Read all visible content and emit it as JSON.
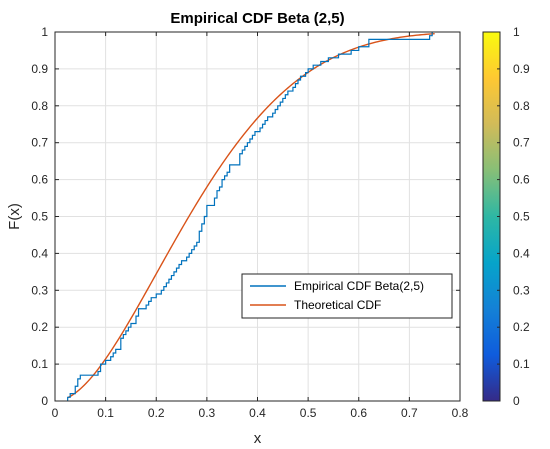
{
  "chart_data": {
    "type": "line",
    "title": "Empirical CDF Beta (2,5)",
    "xlabel": "x",
    "ylabel": "F(x)",
    "xlim": [
      0,
      0.8
    ],
    "ylim": [
      0,
      1
    ],
    "xticks": [
      "0",
      "0.1",
      "0.2",
      "0.3",
      "0.4",
      "0.5",
      "0.6",
      "0.7",
      "0.8"
    ],
    "yticks": [
      "0",
      "0.1",
      "0.2",
      "0.3",
      "0.4",
      "0.5",
      "0.6",
      "0.7",
      "0.8",
      "0.9",
      "1"
    ],
    "grid": true,
    "legend_position": "lower-right",
    "series": [
      {
        "name": "Empirical CDF Beta(2,5)",
        "color": "#0072BD",
        "style": "step",
        "x": [
          0.025,
          0.03,
          0.04,
          0.045,
          0.05,
          0.055,
          0.085,
          0.09,
          0.1,
          0.105,
          0.11,
          0.115,
          0.12,
          0.13,
          0.135,
          0.14,
          0.145,
          0.15,
          0.16,
          0.165,
          0.17,
          0.18,
          0.185,
          0.19,
          0.2,
          0.205,
          0.21,
          0.215,
          0.22,
          0.225,
          0.23,
          0.235,
          0.24,
          0.245,
          0.25,
          0.255,
          0.26,
          0.265,
          0.27,
          0.275,
          0.28,
          0.285,
          0.29,
          0.295,
          0.3,
          0.31,
          0.315,
          0.32,
          0.325,
          0.33,
          0.335,
          0.34,
          0.345,
          0.35,
          0.365,
          0.37,
          0.375,
          0.38,
          0.385,
          0.39,
          0.395,
          0.405,
          0.41,
          0.415,
          0.42,
          0.43,
          0.435,
          0.44,
          0.445,
          0.45,
          0.455,
          0.46,
          0.465,
          0.47,
          0.475,
          0.48,
          0.485,
          0.49,
          0.495,
          0.5,
          0.505,
          0.51,
          0.515,
          0.525,
          0.53,
          0.54,
          0.55,
          0.56,
          0.57,
          0.585,
          0.595,
          0.6,
          0.62,
          0.65,
          0.66,
          0.67,
          0.7,
          0.74,
          0.745
        ],
        "y": [
          0.01,
          0.02,
          0.04,
          0.06,
          0.07,
          0.07,
          0.08,
          0.1,
          0.11,
          0.11,
          0.12,
          0.13,
          0.14,
          0.17,
          0.18,
          0.19,
          0.2,
          0.21,
          0.23,
          0.25,
          0.25,
          0.26,
          0.27,
          0.28,
          0.29,
          0.29,
          0.3,
          0.31,
          0.32,
          0.33,
          0.34,
          0.35,
          0.36,
          0.37,
          0.38,
          0.38,
          0.39,
          0.4,
          0.41,
          0.42,
          0.43,
          0.46,
          0.48,
          0.5,
          0.53,
          0.53,
          0.55,
          0.57,
          0.58,
          0.6,
          0.61,
          0.62,
          0.64,
          0.64,
          0.67,
          0.68,
          0.69,
          0.7,
          0.71,
          0.72,
          0.73,
          0.74,
          0.75,
          0.76,
          0.77,
          0.78,
          0.79,
          0.8,
          0.81,
          0.82,
          0.83,
          0.84,
          0.84,
          0.85,
          0.86,
          0.87,
          0.88,
          0.88,
          0.89,
          0.9,
          0.9,
          0.91,
          0.91,
          0.92,
          0.92,
          0.93,
          0.93,
          0.94,
          0.94,
          0.95,
          0.95,
          0.96,
          0.98,
          0.98,
          0.98,
          0.98,
          0.98,
          0.99,
          1.0
        ]
      },
      {
        "name": "Theoretical CDF",
        "color": "#D95319",
        "style": "line",
        "function": "Beta(2,5) CDF",
        "x_range": [
          0.025,
          0.75
        ]
      }
    ]
  },
  "colorbar": {
    "ticks": [
      "0",
      "0.1",
      "0.2",
      "0.3",
      "0.4",
      "0.5",
      "0.6",
      "0.7",
      "0.8",
      "0.9",
      "1"
    ],
    "colormap": "parula",
    "stops": [
      "#352A87",
      "#0F5CDD",
      "#1481D6",
      "#06A4CA",
      "#2EB7A4",
      "#87BF77",
      "#D1BB59",
      "#FEC832",
      "#F9FB0E"
    ]
  }
}
